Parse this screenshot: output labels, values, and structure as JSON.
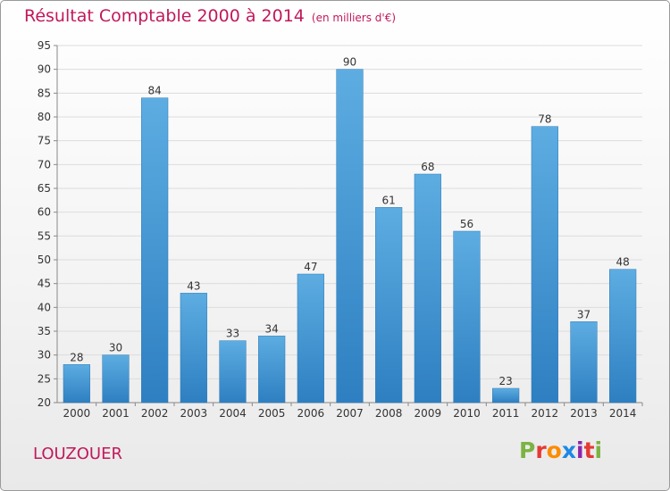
{
  "header": {
    "title": "Résultat Comptable 2000 à 2014",
    "subtitle": "(en milliers d'€)"
  },
  "footer": {
    "town": "LOUZOUER",
    "logo_letters": [
      "P",
      "r",
      "o",
      "x",
      "i",
      "t",
      "i"
    ],
    "logo_colors": [
      "#7cb342",
      "#e53935",
      "#fb8c00",
      "#1e88e5",
      "#8e24aa",
      "#e53935",
      "#7cb342"
    ]
  },
  "chart_data": {
    "type": "bar",
    "title": "Résultat Comptable 2000 à 2014",
    "subtitle": "(en milliers d'€)",
    "xlabel": "",
    "ylabel": "",
    "categories": [
      "2000",
      "2001",
      "2002",
      "2003",
      "2004",
      "2005",
      "2006",
      "2007",
      "2008",
      "2009",
      "2010",
      "2011",
      "2012",
      "2013",
      "2014"
    ],
    "values": [
      28,
      30,
      84,
      43,
      33,
      34,
      47,
      90,
      61,
      68,
      56,
      23,
      78,
      37,
      48
    ],
    "ylim": [
      20,
      95
    ],
    "yticks": [
      20,
      25,
      30,
      35,
      40,
      45,
      50,
      55,
      60,
      65,
      70,
      75,
      80,
      85,
      90,
      95
    ],
    "grid": true,
    "bar_color_light": "#5dade2",
    "bar_color_dark": "#2e7fc1"
  }
}
